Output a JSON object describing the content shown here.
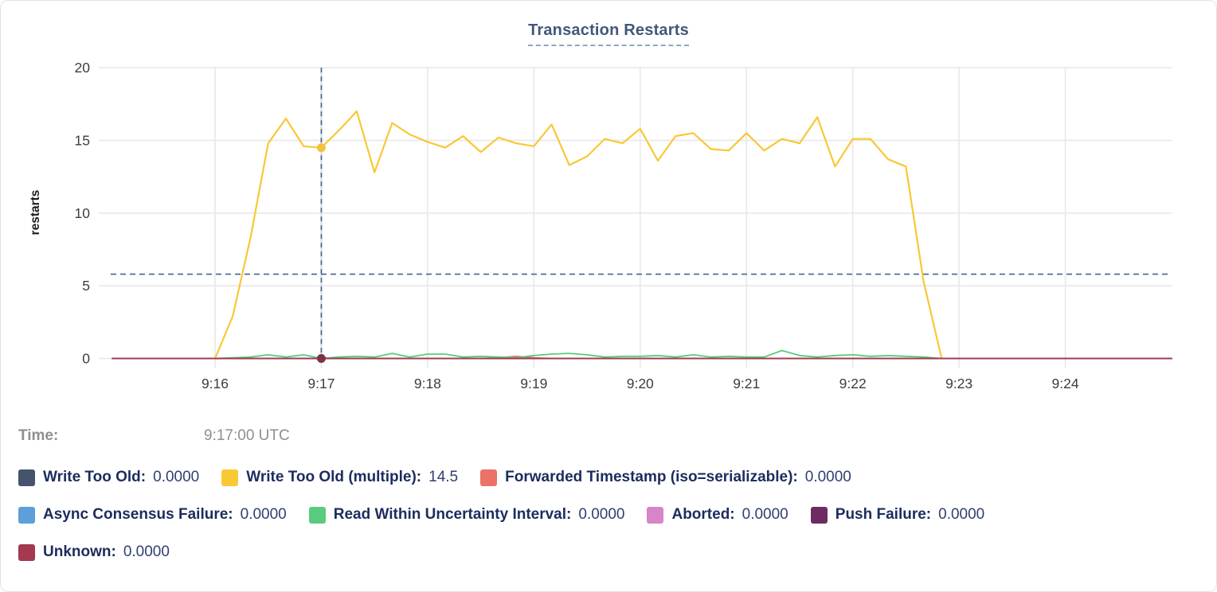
{
  "card": {
    "title": "Transaction Restarts"
  },
  "tooltip": {
    "time_label": "Time:",
    "time_value": "9:17:00 UTC"
  },
  "legend": {
    "rows": [
      [
        {
          "label": "Write Too Old:",
          "value": "0.0000",
          "color": "#45536d"
        },
        {
          "label": "Write Too Old (multiple):",
          "value": "14.5",
          "color": "#f9c835"
        },
        {
          "label": "Forwarded Timestamp (iso=serializable):",
          "value": "0.0000",
          "color": "#ec7166"
        }
      ],
      [
        {
          "label": "Async Consensus Failure:",
          "value": "0.0000",
          "color": "#5c9fd9"
        },
        {
          "label": "Read Within Uncertainty Interval:",
          "value": "0.0000",
          "color": "#5acb7e"
        },
        {
          "label": "Aborted:",
          "value": "0.0000",
          "color": "#d685c8"
        },
        {
          "label": "Push Failure:",
          "value": "0.0000",
          "color": "#6e2a62"
        }
      ],
      [
        {
          "label": "Unknown:",
          "value": "0.0000",
          "color": "#a23a52"
        }
      ]
    ]
  },
  "chart_data": {
    "type": "line",
    "title": "Transaction Restarts",
    "ylabel": "restarts",
    "ylim": [
      0,
      20
    ],
    "yticks": [
      0,
      5,
      10,
      15,
      20
    ],
    "xticks": [
      "9:16",
      "9:17",
      "9:18",
      "9:19",
      "9:20",
      "9:21",
      "9:22",
      "9:23",
      "9:24"
    ],
    "x_window": [
      "9:15:02",
      "9:25:00"
    ],
    "grid": true,
    "crosshair": {
      "time": "9:17:00",
      "hline_value": 5.8
    },
    "markers": [
      {
        "series": "Write Too Old (multiple)",
        "time": "9:17:00",
        "value": 14.5,
        "color": "#f6c13c"
      },
      {
        "series": "Unknown",
        "time": "9:17:00",
        "value": 0,
        "color": "#7b3146"
      }
    ],
    "series": [
      {
        "name": "Write Too Old",
        "color": "#45536d",
        "width": 1.5,
        "data": [
          [
            "9:15:02",
            0
          ],
          [
            "9:25:00",
            0
          ]
        ]
      },
      {
        "name": "Async Consensus Failure",
        "color": "#5c9fd9",
        "width": 1.5,
        "data": [
          [
            "9:15:02",
            0
          ],
          [
            "9:25:00",
            0
          ]
        ]
      },
      {
        "name": "Aborted",
        "color": "#d685c8",
        "width": 1.5,
        "data": [
          [
            "9:15:02",
            0
          ],
          [
            "9:25:00",
            0
          ]
        ]
      },
      {
        "name": "Push Failure",
        "color": "#6e2a62",
        "width": 1.5,
        "data": [
          [
            "9:15:02",
            0
          ],
          [
            "9:25:00",
            0
          ]
        ]
      },
      {
        "name": "Forwarded Timestamp (iso=serializable)",
        "color": "#ec7166",
        "width": 1.8,
        "data": [
          [
            "9:15:02",
            0
          ],
          [
            "9:18:30",
            0
          ],
          [
            "9:18:40",
            0.05
          ],
          [
            "9:18:50",
            0.15
          ],
          [
            "9:19:00",
            0.05
          ],
          [
            "9:19:10",
            0
          ],
          [
            "9:25:00",
            0
          ]
        ]
      },
      {
        "name": "Read Within Uncertainty Interval",
        "color": "#5acb7e",
        "width": 1.8,
        "data": [
          [
            "9:16:00",
            0
          ],
          [
            "9:16:10",
            0.05
          ],
          [
            "9:16:20",
            0.1
          ],
          [
            "9:16:30",
            0.25
          ],
          [
            "9:16:40",
            0.1
          ],
          [
            "9:16:50",
            0.25
          ],
          [
            "9:17:00",
            0
          ],
          [
            "9:17:10",
            0.1
          ],
          [
            "9:17:20",
            0.15
          ],
          [
            "9:17:30",
            0.1
          ],
          [
            "9:17:40",
            0.35
          ],
          [
            "9:17:50",
            0.1
          ],
          [
            "9:18:00",
            0.3
          ],
          [
            "9:18:10",
            0.3
          ],
          [
            "9:18:20",
            0.1
          ],
          [
            "9:18:30",
            0.15
          ],
          [
            "9:18:40",
            0.1
          ],
          [
            "9:18:50",
            0.05
          ],
          [
            "9:19:00",
            0.2
          ],
          [
            "9:19:10",
            0.3
          ],
          [
            "9:19:20",
            0.35
          ],
          [
            "9:19:30",
            0.25
          ],
          [
            "9:19:40",
            0.1
          ],
          [
            "9:19:50",
            0.15
          ],
          [
            "9:20:00",
            0.15
          ],
          [
            "9:20:10",
            0.2
          ],
          [
            "9:20:20",
            0.1
          ],
          [
            "9:20:30",
            0.25
          ],
          [
            "9:20:40",
            0.1
          ],
          [
            "9:20:50",
            0.15
          ],
          [
            "9:21:00",
            0.1
          ],
          [
            "9:21:10",
            0.1
          ],
          [
            "9:21:20",
            0.55
          ],
          [
            "9:21:30",
            0.2
          ],
          [
            "9:21:40",
            0.1
          ],
          [
            "9:21:50",
            0.2
          ],
          [
            "9:22:00",
            0.25
          ],
          [
            "9:22:10",
            0.15
          ],
          [
            "9:22:20",
            0.2
          ],
          [
            "9:22:30",
            0.15
          ],
          [
            "9:22:40",
            0.1
          ],
          [
            "9:22:50",
            0
          ]
        ]
      },
      {
        "name": "Write Too Old (multiple)",
        "color": "#f9c835",
        "width": 2.2,
        "data": [
          [
            "9:16:00",
            0
          ],
          [
            "9:16:10",
            2.9
          ],
          [
            "9:16:20",
            8.3
          ],
          [
            "9:16:30",
            14.8
          ],
          [
            "9:16:40",
            16.5
          ],
          [
            "9:16:50",
            14.6
          ],
          [
            "9:17:00",
            14.5
          ],
          [
            "9:17:10",
            15.7
          ],
          [
            "9:17:20",
            17.0
          ],
          [
            "9:17:30",
            12.8
          ],
          [
            "9:17:40",
            16.2
          ],
          [
            "9:17:50",
            15.4
          ],
          [
            "9:18:00",
            14.9
          ],
          [
            "9:18:10",
            14.5
          ],
          [
            "9:18:20",
            15.3
          ],
          [
            "9:18:30",
            14.2
          ],
          [
            "9:18:40",
            15.2
          ],
          [
            "9:18:50",
            14.8
          ],
          [
            "9:19:00",
            14.6
          ],
          [
            "9:19:10",
            16.1
          ],
          [
            "9:19:20",
            13.3
          ],
          [
            "9:19:30",
            13.9
          ],
          [
            "9:19:40",
            15.1
          ],
          [
            "9:19:50",
            14.8
          ],
          [
            "9:20:00",
            15.8
          ],
          [
            "9:20:10",
            13.6
          ],
          [
            "9:20:20",
            15.3
          ],
          [
            "9:20:30",
            15.5
          ],
          [
            "9:20:40",
            14.4
          ],
          [
            "9:20:50",
            14.3
          ],
          [
            "9:21:00",
            15.5
          ],
          [
            "9:21:10",
            14.3
          ],
          [
            "9:21:20",
            15.1
          ],
          [
            "9:21:30",
            14.8
          ],
          [
            "9:21:40",
            16.6
          ],
          [
            "9:21:50",
            13.2
          ],
          [
            "9:22:00",
            15.1
          ],
          [
            "9:22:10",
            15.1
          ],
          [
            "9:22:20",
            13.7
          ],
          [
            "9:22:30",
            13.2
          ],
          [
            "9:22:40",
            5.3
          ],
          [
            "9:22:50",
            0.1
          ]
        ]
      },
      {
        "name": "Unknown",
        "color": "#a23a52",
        "width": 2,
        "data": [
          [
            "9:15:02",
            0
          ],
          [
            "9:25:00",
            0
          ]
        ]
      }
    ]
  }
}
